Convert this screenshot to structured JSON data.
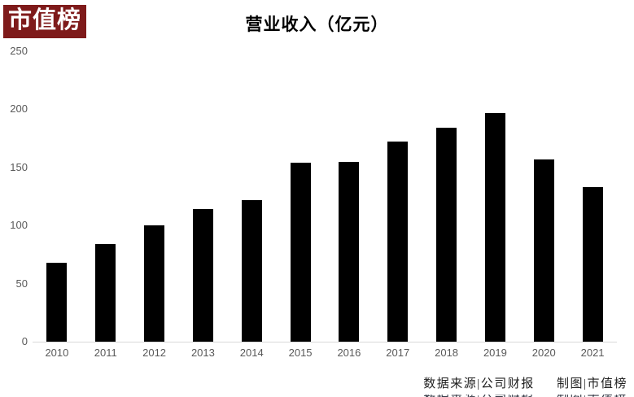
{
  "logo": {
    "text": "市值榜",
    "bg_color": "#7e1a1a",
    "text_color": "#ffffff"
  },
  "chart_data": {
    "type": "bar",
    "title": "营业收入（亿元）",
    "categories": [
      "2010",
      "2011",
      "2012",
      "2013",
      "2014",
      "2015",
      "2016",
      "2017",
      "2018",
      "2019",
      "2020",
      "2021"
    ],
    "values": [
      68,
      84,
      100,
      114,
      122,
      154,
      155,
      172,
      184,
      197,
      157,
      133
    ],
    "xlabel": "",
    "ylabel": "",
    "ylim": [
      0,
      250
    ],
    "y_ticks": [
      0,
      50,
      100,
      150,
      200,
      250
    ],
    "bar_color": "#000000",
    "axis_line_color": "#d9d9d9",
    "tick_label_color": "#595959",
    "grid": false,
    "legend": false
  },
  "footer": {
    "source": "数据来源|公司财报",
    "credit": "制图|市值榜"
  }
}
